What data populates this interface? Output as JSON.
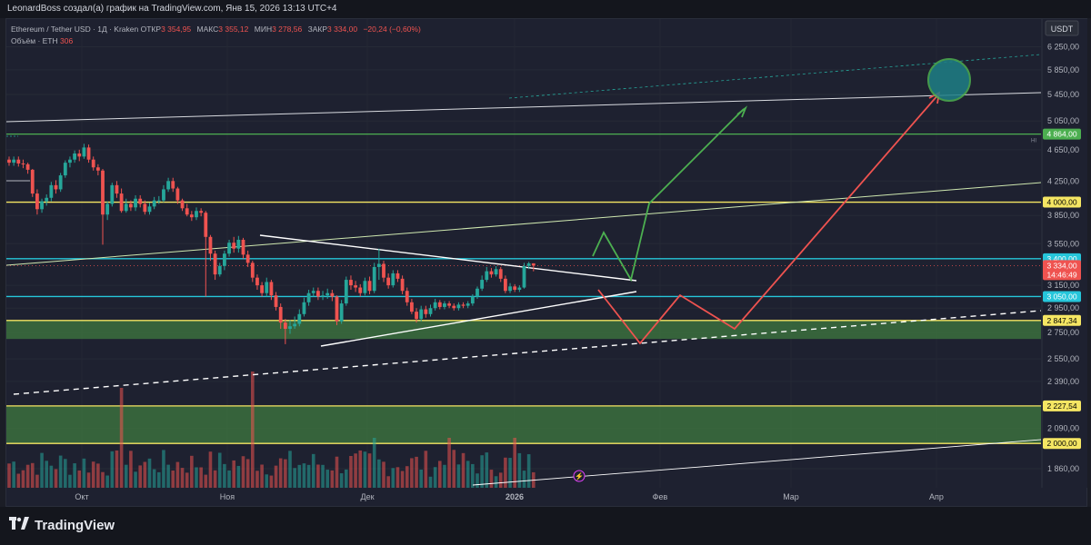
{
  "header": {
    "attribution": "LeonardBoss создал(а) график на TradingView.com, Янв 15, 2026 13:13 UTC+4"
  },
  "legend": {
    "symbol": "Ethereum / Tether USD · 1Д · Kraken",
    "open_label": "ОТКР",
    "open": "3 354,95",
    "high_label": "МАКС",
    "high": "3 355,12",
    "low_label": "МИН",
    "low": "3 278,56",
    "close_label": "ЗАКР",
    "close": "3 334,00",
    "change": "−20,24 (−0,60%)",
    "volume_label": "Объём · ETH",
    "volume": "306"
  },
  "footer": {
    "brand": "TradingView"
  },
  "chart_data": {
    "type": "candlestick",
    "symbol": "ETH/USDT",
    "timeframe": "1D",
    "currency": "USDT",
    "y_scale": "log",
    "ylim": [
      1750,
      6600
    ],
    "y_ticks": [
      6250,
      5850,
      5450,
      5050,
      4650,
      4250,
      3850,
      3550,
      3150,
      2950,
      2750,
      2550,
      2390,
      2090,
      1860
    ],
    "y_tick_labels": [
      "6 250,00",
      "5 850,00",
      "5 450,00",
      "5 050,00",
      "4 650,00",
      "4 250,00",
      "3 850,00",
      "3 550,00",
      "3 150,00",
      "2 950,00",
      "2 750,00",
      "2 550,00",
      "2 390,00",
      "2 090,00",
      "1 860,00"
    ],
    "x_labels": [
      "Окт",
      "Ноя",
      "Дек",
      "2026",
      "Фев",
      "Мар",
      "Апр"
    ],
    "price_badges": [
      {
        "value": 4864,
        "label": "4 864,00",
        "color": "#4caf50",
        "text_color": "#ffffff"
      },
      {
        "value": 4000,
        "label": "4 000,00",
        "color": "#f5e663",
        "text_color": "#000000"
      },
      {
        "value": 3400,
        "label": "3 400,00",
        "color": "#26c6da",
        "text_color": "#ffffff"
      },
      {
        "value": 3334,
        "label": "3 334,00",
        "sub": "14:46:49",
        "color": "#ef5350",
        "text_color": "#ffffff"
      },
      {
        "value": 3050,
        "label": "3 050,00",
        "color": "#26c6da",
        "text_color": "#ffffff"
      },
      {
        "value": 2847.34,
        "label": "2 847,34",
        "color": "#f5e663",
        "text_color": "#000000"
      },
      {
        "value": 2227.54,
        "label": "2 227,54",
        "color": "#f5e663",
        "text_color": "#000000"
      },
      {
        "value": 2000,
        "label": "2 000,00",
        "color": "#f5e663",
        "text_color": "#000000"
      }
    ],
    "hi_marker": "HI",
    "candles": [
      [
        4520,
        4480,
        4560,
        4440
      ],
      [
        4480,
        4520,
        4560,
        4440
      ],
      [
        4520,
        4470,
        4560,
        4430
      ],
      [
        4470,
        4460,
        4520,
        4410
      ],
      [
        4460,
        4390,
        4480,
        4340
      ],
      [
        4390,
        4100,
        4400,
        4060
      ],
      [
        4100,
        3920,
        4150,
        3860
      ],
      [
        3920,
        4010,
        4040,
        3880
      ],
      [
        4010,
        4050,
        4090,
        3960
      ],
      [
        4050,
        4200,
        4240,
        4010
      ],
      [
        4200,
        4150,
        4260,
        4100
      ],
      [
        4150,
        4320,
        4350,
        4120
      ],
      [
        4320,
        4480,
        4510,
        4290
      ],
      [
        4480,
        4520,
        4560,
        4420
      ],
      [
        4520,
        4600,
        4640,
        4480
      ],
      [
        4600,
        4560,
        4650,
        4500
      ],
      [
        4560,
        4680,
        4730,
        4530
      ],
      [
        4680,
        4520,
        4720,
        4480
      ],
      [
        4520,
        4420,
        4560,
        4380
      ],
      [
        4420,
        4380,
        4460,
        4320
      ],
      [
        4380,
        3860,
        4400,
        3540
      ],
      [
        3860,
        3980,
        4010,
        3800
      ],
      [
        3980,
        4200,
        4230,
        3950
      ],
      [
        4200,
        4100,
        4250,
        4050
      ],
      [
        4100,
        3900,
        4160,
        3880
      ],
      [
        3900,
        3980,
        4040,
        3880
      ],
      [
        3980,
        3940,
        4020,
        3900
      ],
      [
        3940,
        4040,
        4080,
        3900
      ],
      [
        4040,
        3980,
        4080,
        3940
      ],
      [
        3980,
        3890,
        4020,
        3860
      ],
      [
        3890,
        3950,
        3990,
        3860
      ],
      [
        3950,
        4020,
        4060,
        3920
      ],
      [
        4020,
        4020,
        4070,
        3980
      ],
      [
        4020,
        4150,
        4200,
        4000
      ],
      [
        4150,
        4250,
        4290,
        4120
      ],
      [
        4250,
        4160,
        4290,
        4120
      ],
      [
        4160,
        4020,
        4180,
        3980
      ],
      [
        4020,
        3930,
        4040,
        3900
      ],
      [
        3930,
        3860,
        3980,
        3840
      ],
      [
        3860,
        3830,
        3900,
        3790
      ],
      [
        3830,
        3900,
        3940,
        3800
      ],
      [
        3900,
        3880,
        3930,
        3840
      ],
      [
        3880,
        3620,
        3900,
        3050
      ],
      [
        3620,
        3450,
        3640,
        3380
      ],
      [
        3450,
        3250,
        3480,
        3200
      ],
      [
        3250,
        3330,
        3360,
        3230
      ],
      [
        3330,
        3450,
        3480,
        3290
      ],
      [
        3450,
        3560,
        3590,
        3420
      ],
      [
        3560,
        3500,
        3620,
        3460
      ],
      [
        3500,
        3590,
        3630,
        3460
      ],
      [
        3590,
        3440,
        3610,
        3400
      ],
      [
        3440,
        3360,
        3480,
        3320
      ],
      [
        3360,
        3220,
        3380,
        3180
      ],
      [
        3220,
        3150,
        3250,
        3110
      ],
      [
        3150,
        3080,
        3180,
        3050
      ],
      [
        3080,
        3180,
        3220,
        3050
      ],
      [
        3180,
        3060,
        3200,
        3020
      ],
      [
        3060,
        2960,
        3090,
        2930
      ],
      [
        2960,
        2830,
        2990,
        2780
      ],
      [
        2830,
        2780,
        2860,
        2660
      ],
      [
        2780,
        2800,
        2850,
        2740
      ],
      [
        2800,
        2820,
        2880,
        2780
      ],
      [
        2820,
        2900,
        2940,
        2800
      ],
      [
        2900,
        3000,
        3040,
        2880
      ],
      [
        3000,
        3080,
        3110,
        2970
      ],
      [
        3080,
        3100,
        3130,
        3050
      ],
      [
        3100,
        3050,
        3130,
        3020
      ],
      [
        3050,
        3060,
        3100,
        3020
      ],
      [
        3060,
        3080,
        3120,
        3030
      ],
      [
        3080,
        3050,
        3110,
        3010
      ],
      [
        3050,
        2840,
        3060,
        2810
      ],
      [
        2840,
        2990,
        3020,
        2820
      ],
      [
        2990,
        3200,
        3230,
        2970
      ],
      [
        3200,
        3150,
        3240,
        3110
      ],
      [
        3150,
        3130,
        3190,
        3090
      ],
      [
        3130,
        3080,
        3160,
        3050
      ],
      [
        3080,
        3190,
        3220,
        3060
      ],
      [
        3190,
        3100,
        3230,
        3070
      ],
      [
        3100,
        3320,
        3360,
        3080
      ],
      [
        3320,
        3350,
        3500,
        3200
      ],
      [
        3350,
        3220,
        3380,
        3180
      ],
      [
        3220,
        3150,
        3260,
        3120
      ],
      [
        3150,
        3260,
        3290,
        3130
      ],
      [
        3260,
        3210,
        3290,
        3180
      ],
      [
        3210,
        3100,
        3240,
        3070
      ],
      [
        3100,
        3000,
        3130,
        2970
      ],
      [
        3000,
        2920,
        3030,
        2900
      ],
      [
        2920,
        2860,
        2950,
        2830
      ],
      [
        2860,
        2940,
        2970,
        2840
      ],
      [
        2940,
        2900,
        2970,
        2870
      ],
      [
        2900,
        2950,
        2980,
        2880
      ],
      [
        2950,
        3000,
        3030,
        2930
      ],
      [
        3000,
        2960,
        3020,
        2940
      ],
      [
        2960,
        2990,
        3010,
        2940
      ],
      [
        2990,
        2970,
        3010,
        2950
      ],
      [
        2970,
        2950,
        2990,
        2930
      ],
      [
        2950,
        2980,
        3000,
        2930
      ],
      [
        2980,
        2970,
        3000,
        2950
      ],
      [
        2970,
        2990,
        3010,
        2950
      ],
      [
        2990,
        3050,
        3070,
        2970
      ],
      [
        3050,
        3120,
        3140,
        3030
      ],
      [
        3120,
        3200,
        3240,
        3100
      ],
      [
        3200,
        3280,
        3320,
        3180
      ],
      [
        3280,
        3250,
        3310,
        3220
      ],
      [
        3250,
        3300,
        3330,
        3230
      ],
      [
        3300,
        3210,
        3320,
        3180
      ],
      [
        3210,
        3100,
        3240,
        3080
      ],
      [
        3100,
        3140,
        3170,
        3080
      ],
      [
        3140,
        3110,
        3160,
        3090
      ],
      [
        3110,
        3130,
        3150,
        3090
      ],
      [
        3130,
        3330,
        3360,
        3120
      ],
      [
        3330,
        3355,
        3370,
        3300
      ],
      [
        3355,
        3334,
        3356,
        3279
      ]
    ],
    "volume_profile": "daily bars, two elevated spikes mid-October and early November",
    "levels": [
      {
        "name": "4864 support",
        "value": 4864,
        "color": "#4caf50"
      },
      {
        "name": "4000",
        "value": 4000,
        "color": "#f5e663"
      },
      {
        "name": "3400",
        "value": 3400,
        "color": "#26c6da"
      },
      {
        "name": "3050",
        "value": 3050,
        "color": "#26c6da"
      },
      {
        "name": "2847.34",
        "value": 2847.34,
        "color": "#f5e663"
      },
      {
        "name": "2227.54",
        "value": 2227.54,
        "color": "#f5e663"
      },
      {
        "name": "2000",
        "value": 2000,
        "color": "#f5e663"
      }
    ],
    "zones": [
      {
        "from": 2700,
        "to": 2847.34,
        "color": "#3f7a3f"
      },
      {
        "from": 2000,
        "to": 2227.54,
        "color": "#3f7a3f"
      }
    ],
    "scenarios": [
      {
        "name": "bullish",
        "color": "#4caf50",
        "path": [
          [
            3334,
            3550
          ],
          [
            3400,
            3950
          ],
          [
            5300
          ]
        ]
      },
      {
        "name": "bearish-then-bullish",
        "color": "#ef5350",
        "path": [
          [
            3200,
            2700,
            3150,
            2780,
            5450
          ]
        ]
      }
    ],
    "target_circle": {
      "price": 5620,
      "color": "#26a69a"
    }
  }
}
